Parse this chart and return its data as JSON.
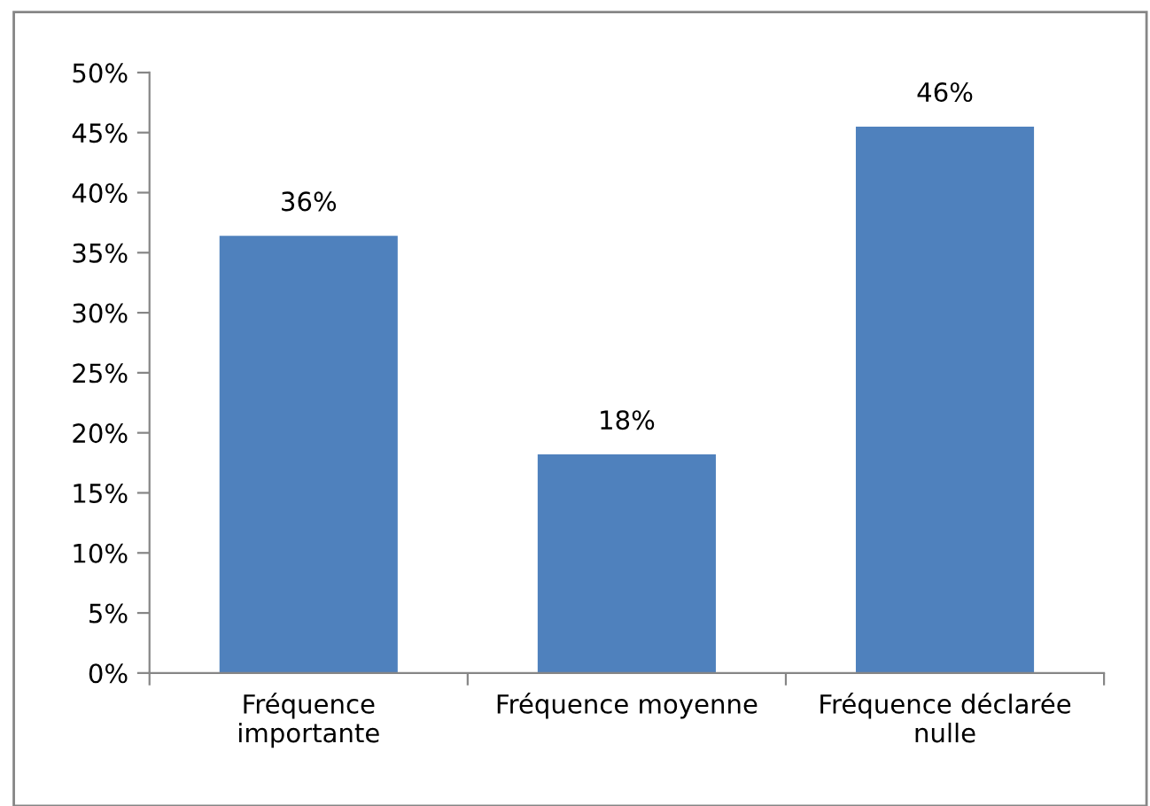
{
  "chart_data": {
    "type": "bar",
    "categories": [
      "Fréquence\nimportante",
      "Fréquence moyenne",
      "Fréquence déclarée\nnulle"
    ],
    "values": [
      36.4,
      18.2,
      45.5
    ],
    "value_labels": [
      "36%",
      "18%",
      "46%"
    ],
    "color": "#4f81bd",
    "ylim": [
      0,
      50
    ],
    "yticks": [
      {
        "value": 0,
        "label": "0%"
      },
      {
        "value": 5,
        "label": "5%"
      },
      {
        "value": 10,
        "label": "10%"
      },
      {
        "value": 15,
        "label": "15%"
      },
      {
        "value": 20,
        "label": "20%"
      },
      {
        "value": 25,
        "label": "25%"
      },
      {
        "value": 30,
        "label": "30%"
      },
      {
        "value": 35,
        "label": "35%"
      },
      {
        "value": 40,
        "label": "40%"
      },
      {
        "value": 45,
        "label": "45%"
      },
      {
        "value": 50,
        "label": "50%"
      }
    ],
    "grid": false
  }
}
